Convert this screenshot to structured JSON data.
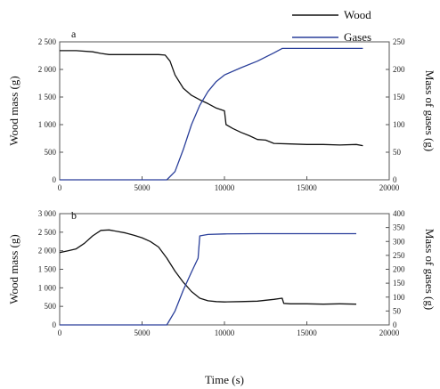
{
  "colors": {
    "wood": "#111111",
    "gases": "#2a3f9a",
    "axis": "#555555"
  },
  "chart_data": [
    {
      "type": "line",
      "panel_label": "a",
      "xlabel": "",
      "ylabel_left": "Wood mass (g)",
      "ylabel_right": "Mass of gases (g)",
      "xlim": [
        0,
        20000
      ],
      "ylim_left": [
        0,
        2500
      ],
      "ylim_right": [
        0,
        250
      ],
      "x_ticks": [
        0,
        5000,
        10000,
        15000,
        20000
      ],
      "x_tick_labels": [
        "0",
        "5000",
        "10000",
        "15000",
        "20000"
      ],
      "y_left_ticks": [
        0,
        500,
        1000,
        1500,
        2000,
        2500
      ],
      "y_left_tick_labels": [
        "0",
        "500",
        "1 000",
        "1 500",
        "2 000",
        "2 500"
      ],
      "y_right_ticks": [
        0,
        50,
        100,
        150,
        200,
        250
      ],
      "y_right_tick_labels": [
        "0",
        "50",
        "100",
        "150",
        "200",
        "250"
      ],
      "series": [
        {
          "name": "Wood",
          "axis": "left",
          "x": [
            0,
            1000,
            2000,
            2500,
            3000,
            4000,
            5000,
            6000,
            6400,
            6700,
            7000,
            7500,
            8000,
            8500,
            9000,
            9500,
            10000,
            10100,
            10500,
            11000,
            11500,
            12000,
            12500,
            13000,
            14000,
            15000,
            16000,
            17000,
            18000,
            18400
          ],
          "y": [
            2340,
            2340,
            2320,
            2290,
            2270,
            2270,
            2270,
            2270,
            2260,
            2150,
            1900,
            1660,
            1530,
            1450,
            1380,
            1300,
            1250,
            1000,
            930,
            860,
            800,
            730,
            720,
            660,
            650,
            640,
            640,
            630,
            640,
            620
          ]
        },
        {
          "name": "Gases",
          "axis": "right",
          "x": [
            0,
            6500,
            7000,
            7500,
            8000,
            8500,
            9000,
            9500,
            10000,
            11000,
            12000,
            13000,
            13500,
            14000,
            15000,
            16000,
            17000,
            18400
          ],
          "y": [
            0,
            0,
            15,
            55,
            100,
            135,
            160,
            178,
            190,
            203,
            215,
            230,
            238,
            238,
            238,
            238,
            238,
            238
          ]
        }
      ]
    },
    {
      "type": "line",
      "panel_label": "b",
      "xlabel": "Time (s)",
      "ylabel_left": "Wood mass (g)",
      "ylabel_right": "Mass of gases (g)",
      "xlim": [
        0,
        20000
      ],
      "ylim_left": [
        0,
        3000
      ],
      "ylim_right": [
        0,
        400
      ],
      "x_ticks": [
        0,
        5000,
        10000,
        15000,
        20000
      ],
      "x_tick_labels": [
        "0",
        "5000",
        "10000",
        "15000",
        "20000"
      ],
      "y_left_ticks": [
        0,
        500,
        1000,
        1500,
        2000,
        2500,
        3000
      ],
      "y_left_tick_labels": [
        "0",
        "500",
        "1 000",
        "1 500",
        "2 000",
        "2 500",
        "3 000"
      ],
      "y_right_ticks": [
        0,
        50,
        100,
        150,
        200,
        250,
        300,
        350,
        400
      ],
      "y_right_tick_labels": [
        "0",
        "50",
        "100",
        "150",
        "200",
        "250",
        "300",
        "350",
        "400"
      ],
      "series": [
        {
          "name": "Wood",
          "axis": "left",
          "x": [
            0,
            500,
            1000,
            1500,
            2000,
            2500,
            3000,
            3500,
            4000,
            4500,
            5000,
            5500,
            6000,
            6500,
            7000,
            7500,
            8000,
            8500,
            9000,
            9500,
            10000,
            11000,
            12000,
            13000,
            13500,
            13600,
            14000,
            15000,
            16000,
            17000,
            18000
          ],
          "y": [
            1950,
            2000,
            2050,
            2200,
            2400,
            2550,
            2560,
            2520,
            2480,
            2420,
            2350,
            2250,
            2100,
            1800,
            1450,
            1150,
            900,
            720,
            650,
            630,
            620,
            630,
            640,
            690,
            720,
            580,
            570,
            570,
            560,
            570,
            560
          ]
        },
        {
          "name": "Gases",
          "axis": "right",
          "x": [
            0,
            6500,
            7000,
            7500,
            8000,
            8400,
            8500,
            9000,
            10000,
            12000,
            14000,
            16000,
            18000
          ],
          "y": [
            0,
            0,
            50,
            125,
            190,
            240,
            320,
            325,
            327,
            328,
            328,
            328,
            328
          ]
        }
      ]
    }
  ]
}
